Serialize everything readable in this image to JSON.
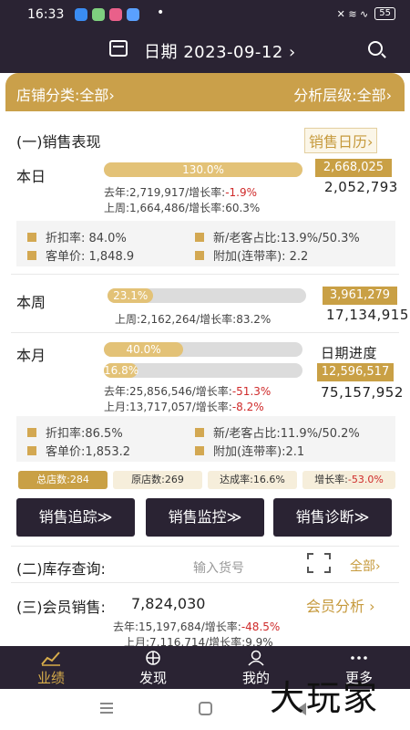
{
  "status_bar": {
    "time": "16:33",
    "dot": "•",
    "signal": "✕ ≋ ∿",
    "battery": "55"
  },
  "header": {
    "date_label": "日期 2023-09-12 ›"
  },
  "filter": {
    "left": "店铺分类:全部›",
    "right": "分析层级:全部›"
  },
  "sales": {
    "title": "(一)销售表现",
    "calendar_link": "销售日历›",
    "day": {
      "label": "本日",
      "bar_text": "130.0%",
      "bar_fill": 1.0,
      "badge": "2,668,025",
      "value": "2,052,793",
      "last_year_prefix": "去年:2,719,917/增长率:",
      "last_year_rate": "-1.9%",
      "last_week": "上周:1,664,486/增长率:60.3%"
    },
    "day_stats": {
      "discount": "折扣率:  84.0%",
      "new_old": "新/老客占比:13.9%/50.3%",
      "unit_price": "客单价:  1,848.9",
      "attach": "附加(连带率):  2.2"
    },
    "week": {
      "label": "本周",
      "bar_text": "23.1%",
      "bar_fill": 0.231,
      "badge": "3,961,279",
      "value": "17,134,915",
      "last_week": "上周:2,162,264/增长率:83.2%"
    },
    "month": {
      "label": "本月",
      "bar_text": "40.0%",
      "bar_fill": 0.4,
      "bar2_text": "16.8%",
      "bar2_fill": 0.168,
      "progress_label": "日期进度",
      "badge": "12,596,517",
      "value": "75,157,952",
      "last_year_prefix": "去年:25,856,546/增长率:",
      "last_year_rate": "-51.3%",
      "last_month_prefix": "上月:13,717,057/增长率:",
      "last_month_rate": "-8.2%"
    },
    "month_stats": {
      "discount": "折扣率:86.5%",
      "new_old": "新/老客占比:11.9%/50.2%",
      "unit_price": "客单价:1,853.2",
      "attach": "附加(连带率):2.1"
    },
    "chips": {
      "total_stores": "总店数:284",
      "orig_stores": "原店数:269",
      "achieve": "达成率:16.6%",
      "growth_prefix": "增长率:",
      "growth_rate": "-53.0%"
    },
    "buttons": [
      "销售追踪≫",
      "销售监控≫",
      "销售诊断≫"
    ]
  },
  "inventory": {
    "title": "(二)库存查询:",
    "placeholder": "输入货号",
    "all_link": "全部›"
  },
  "members": {
    "title": "(三)会员销售:",
    "value": "7,824,030",
    "analysis_link": "会员分析 ›",
    "last_year_prefix": "去年:15,197,684/增长率:",
    "last_year_rate": "-48.5%",
    "last_month": "上月:7,116,714/增长率:9.9%"
  },
  "nav": {
    "items": [
      "业绩",
      "发现",
      "我的",
      "更多"
    ]
  },
  "watermark": "大玩家",
  "colors": {
    "dark": "#2a2333",
    "gold": "#c9a045",
    "red": "#cf2a2a"
  }
}
